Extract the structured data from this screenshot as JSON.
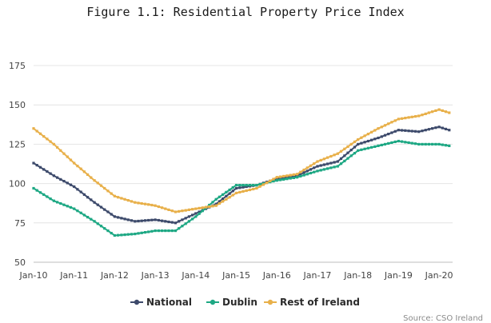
{
  "chart_data": {
    "type": "line",
    "title": "Figure 1.1: Residential Property Price Index",
    "xlabel": "",
    "ylabel": "",
    "ylim": [
      50,
      175
    ],
    "yticks": [
      50,
      75,
      100,
      125,
      150,
      175
    ],
    "grid": true,
    "legend_position": "bottom",
    "x_ticks": [
      "Jan-10",
      "Jan-11",
      "Jan-12",
      "Jan-13",
      "Jan-14",
      "Jan-15",
      "Jan-16",
      "Jan-17",
      "Jan-18",
      "Jan-19",
      "Jan-20"
    ],
    "x": [
      "Jan-10",
      "Jul-10",
      "Jan-11",
      "Jul-11",
      "Jan-12",
      "Jul-12",
      "Jan-13",
      "Jul-13",
      "Jan-14",
      "Jul-14",
      "Jan-15",
      "Jul-15",
      "Jan-16",
      "Jul-16",
      "Jan-17",
      "Jul-17",
      "Jan-18",
      "Jul-18",
      "Jan-19",
      "Jul-19",
      "Jan-20",
      "Apr-20"
    ],
    "series": [
      {
        "name": "National",
        "color": "#3d4a6b",
        "values": [
          113,
          105,
          98,
          88,
          79,
          76,
          77,
          75,
          81,
          87,
          97,
          99,
          103,
          105,
          111,
          114,
          125,
          129,
          134,
          133,
          136,
          134
        ]
      },
      {
        "name": "Dublin",
        "color": "#1ea884",
        "values": [
          97,
          89,
          84,
          76,
          67,
          68,
          70,
          70,
          79,
          90,
          99,
          99,
          102,
          104,
          108,
          111,
          121,
          124,
          127,
          125,
          125,
          124
        ]
      },
      {
        "name": "Rest of Ireland",
        "color": "#e8b04a",
        "values": [
          135,
          125,
          113,
          102,
          92,
          88,
          86,
          82,
          84,
          86,
          94,
          97,
          104,
          106,
          114,
          119,
          128,
          135,
          141,
          143,
          147,
          145
        ]
      }
    ]
  },
  "source_text": "Source: CSO Ireland"
}
